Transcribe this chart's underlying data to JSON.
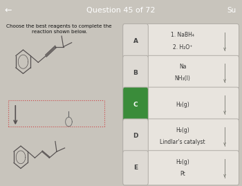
{
  "title": "Question 45 of 72",
  "subtitle": "Su",
  "instruction": "Choose the best reagents to complete the\nreaction shown below.",
  "background_color": "#c8c4bc",
  "header_color": "#b03020",
  "header_text_color": "#ffffff",
  "options": [
    {
      "label": "A",
      "lines": [
        "1. NaBH₄",
        "2. H₂O⁺"
      ],
      "selected": false
    },
    {
      "label": "B",
      "lines": [
        "Na",
        "NH₃(l)"
      ],
      "selected": false
    },
    {
      "label": "C",
      "lines": [
        "H₂(g)"
      ],
      "selected": true
    },
    {
      "label": "D",
      "lines": [
        "H₂(g)",
        "Lindlar's catalyst"
      ],
      "selected": false
    },
    {
      "label": "E",
      "lines": [
        "H₂(g)",
        "Pt"
      ],
      "selected": false
    }
  ],
  "option_bg": "#e8e4de",
  "option_border": "#b0aca6",
  "selected_label_bg": "#3a8c3a",
  "selected_label_text": "#ffffff",
  "unselected_label_bg": "#dedad4",
  "unselected_label_text": "#444444",
  "option_text_color": "#333333",
  "arrow_color": "#7a7060",
  "dashed_box_color": "#cc4444",
  "left_bg": "#c8c4bc",
  "right_bg": "#c0bdb6"
}
